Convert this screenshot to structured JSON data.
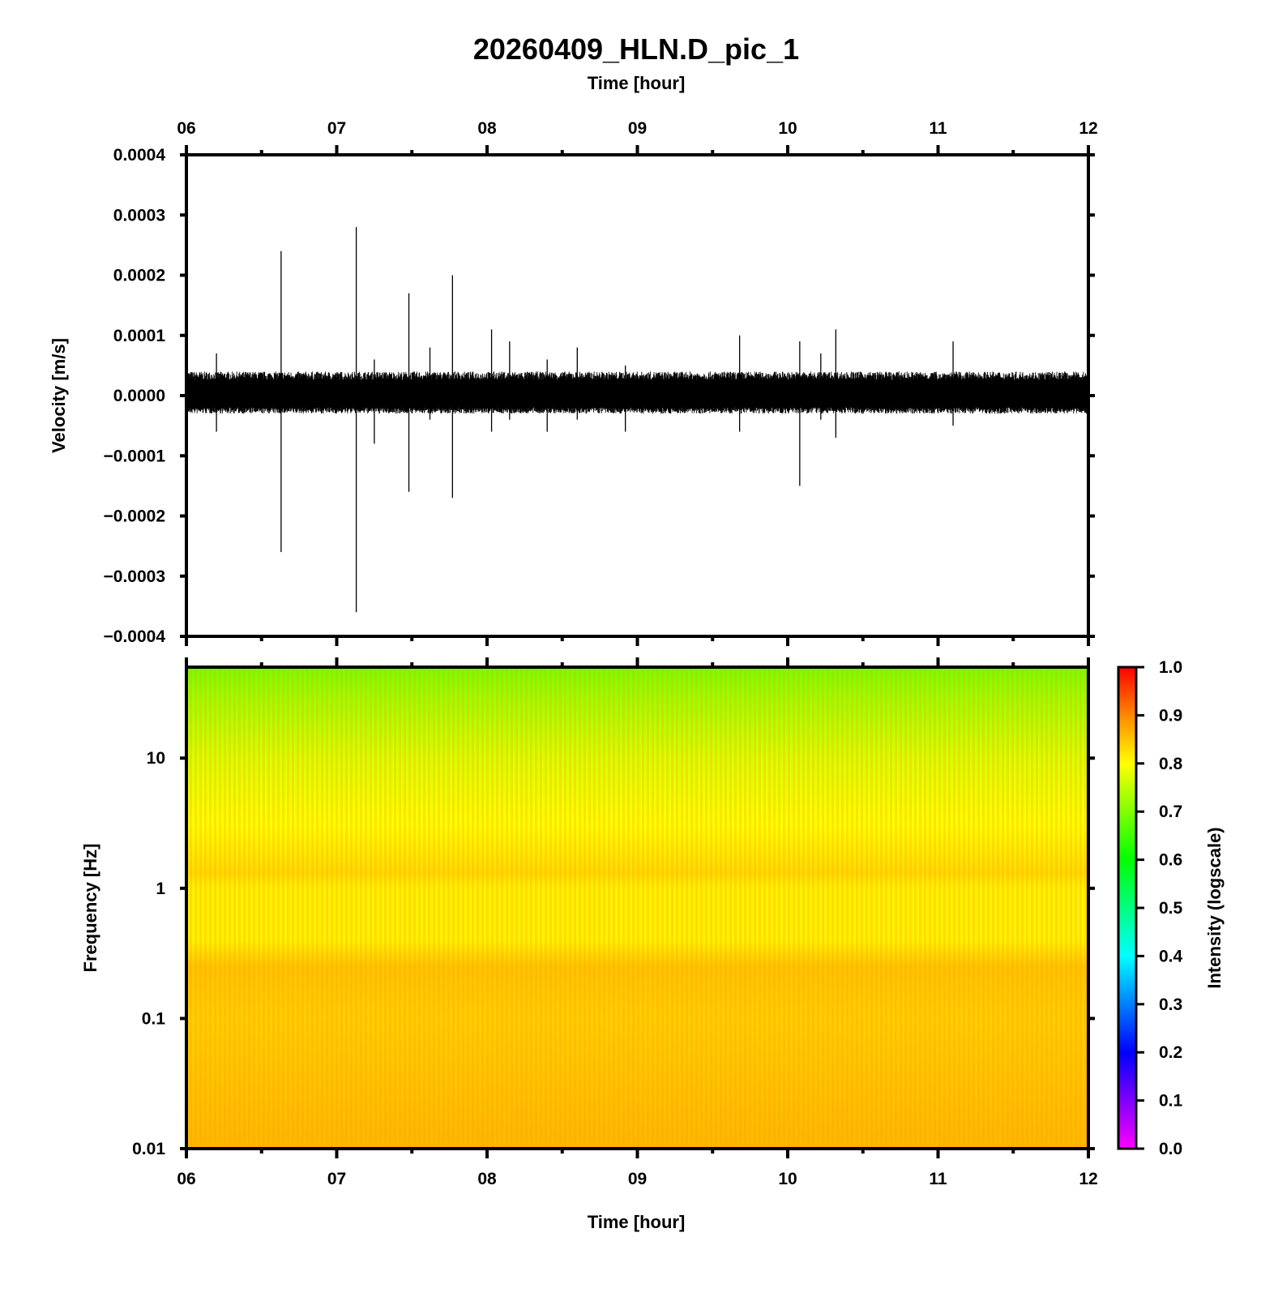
{
  "chart_data": [
    {
      "type": "line",
      "title": "20260409_HLN.D_pic_1",
      "xlabel": "Time [hour]",
      "ylabel": "Velocity [m/s]",
      "xlim": [
        6,
        12
      ],
      "ylim": [
        -0.0004,
        0.0004
      ],
      "x_ticks": [
        "06",
        "07",
        "08",
        "09",
        "10",
        "11",
        "12"
      ],
      "y_ticks": [
        "0.0004",
        "0.0003",
        "0.0002",
        "0.0001",
        "0.0000",
        "−0.0001",
        "−0.0002",
        "−0.0003",
        "−0.0004"
      ],
      "background_band": {
        "min": -3e-05,
        "max": 4e-05
      },
      "spikes": [
        {
          "x": 6.2,
          "max": 7e-05,
          "min": -6e-05
        },
        {
          "x": 6.63,
          "max": 0.00024,
          "min": -0.00026
        },
        {
          "x": 7.13,
          "max": 0.00028,
          "min": -0.00036
        },
        {
          "x": 7.25,
          "max": 6e-05,
          "min": -8e-05
        },
        {
          "x": 7.48,
          "max": 0.00017,
          "min": -0.00016
        },
        {
          "x": 7.62,
          "max": 8e-05,
          "min": -4e-05
        },
        {
          "x": 7.77,
          "max": 0.0002,
          "min": -0.00017
        },
        {
          "x": 8.03,
          "max": 0.00011,
          "min": -6e-05
        },
        {
          "x": 8.15,
          "max": 9e-05,
          "min": -4e-05
        },
        {
          "x": 8.4,
          "max": 6e-05,
          "min": -6e-05
        },
        {
          "x": 8.6,
          "max": 8e-05,
          "min": -4e-05
        },
        {
          "x": 8.92,
          "max": 5e-05,
          "min": -6e-05
        },
        {
          "x": 9.68,
          "max": 0.0001,
          "min": -6e-05
        },
        {
          "x": 10.08,
          "max": 9e-05,
          "min": -0.00015
        },
        {
          "x": 10.22,
          "max": 7e-05,
          "min": -4e-05
        },
        {
          "x": 10.32,
          "max": 0.00011,
          "min": -7e-05
        },
        {
          "x": 11.1,
          "max": 9e-05,
          "min": -5e-05
        }
      ]
    },
    {
      "type": "heatmap",
      "xlabel": "Time [hour]",
      "ylabel": "Frequency [Hz]",
      "xlim": [
        6,
        12
      ],
      "ylim": [
        0.01,
        50
      ],
      "y_scale": "log",
      "x_ticks": [
        "06",
        "07",
        "08",
        "09",
        "10",
        "11",
        "12"
      ],
      "y_ticks": [
        {
          "value": 10,
          "label": "10"
        },
        {
          "value": 1,
          "label": "1"
        },
        {
          "value": 0.1,
          "label": "0.1"
        },
        {
          "value": 0.01,
          "label": "0.01"
        }
      ],
      "intensity_profile": [
        {
          "freq": 50,
          "intensity": 0.69
        },
        {
          "freq": 30,
          "intensity": 0.72
        },
        {
          "freq": 10,
          "intensity": 0.77
        },
        {
          "freq": 3,
          "intensity": 0.8
        },
        {
          "freq": 1.3,
          "intensity": 0.83
        },
        {
          "freq": 1,
          "intensity": 0.81
        },
        {
          "freq": 0.4,
          "intensity": 0.81
        },
        {
          "freq": 0.25,
          "intensity": 0.85
        },
        {
          "freq": 0.1,
          "intensity": 0.84
        },
        {
          "freq": 0.01,
          "intensity": 0.86
        }
      ],
      "colorbar": {
        "label": "Intensity (logscale)",
        "range": [
          0,
          1
        ],
        "ticks": [
          "1.0",
          "0.9",
          "0.8",
          "0.7",
          "0.6",
          "0.5",
          "0.4",
          "0.3",
          "0.2",
          "0.1",
          "0.0"
        ],
        "stops": [
          {
            "v": 0.0,
            "color": "#ff00ff"
          },
          {
            "v": 0.2,
            "color": "#0000ff"
          },
          {
            "v": 0.4,
            "color": "#00ffff"
          },
          {
            "v": 0.6,
            "color": "#00ff00"
          },
          {
            "v": 0.8,
            "color": "#ffff00"
          },
          {
            "v": 0.9,
            "color": "#ff8800"
          },
          {
            "v": 1.0,
            "color": "#ff0000"
          }
        ]
      }
    }
  ]
}
